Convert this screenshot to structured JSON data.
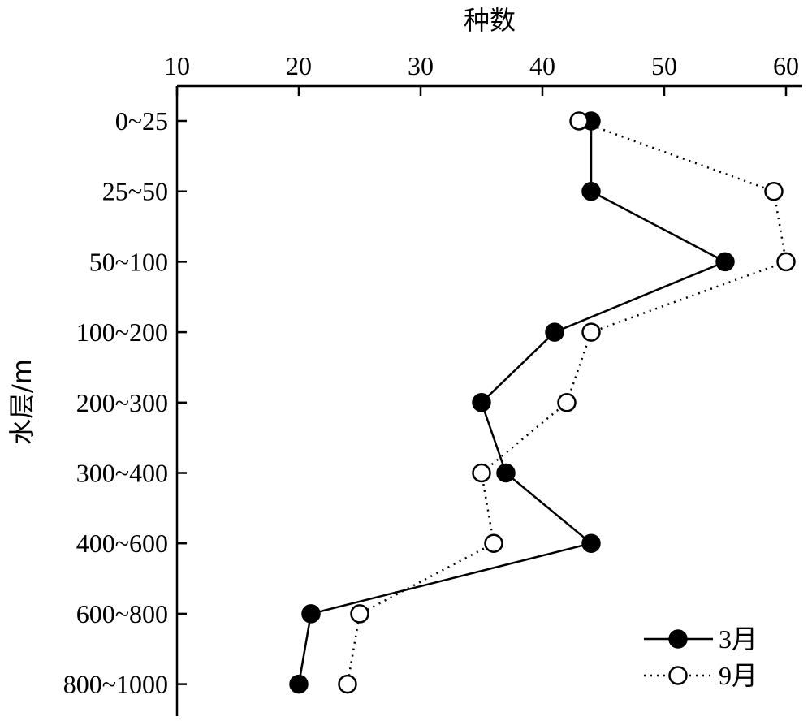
{
  "chart_data": {
    "type": "line",
    "xlabel": "种数",
    "ylabel": "水层/m",
    "xlim": [
      10,
      62
    ],
    "x_ticks": [
      10,
      20,
      30,
      40,
      50,
      60
    ],
    "x_axis_position": "top",
    "categories": [
      "0~25",
      "25~50",
      "50~100",
      "100~200",
      "200~300",
      "300~400",
      "400~600",
      "600~800",
      "800~1000"
    ],
    "legend_position": "bottom-right",
    "grid": false,
    "series": [
      {
        "name": "3月",
        "values": [
          44,
          44,
          55,
          41,
          35,
          37,
          44,
          21,
          20
        ],
        "marker": "filled-circle",
        "line_style": "solid",
        "color": "#000000"
      },
      {
        "name": "9月",
        "values": [
          43,
          59,
          60,
          44,
          42,
          35,
          36,
          25,
          24
        ],
        "marker": "open-circle",
        "line_style": "dotted",
        "color": "#000000"
      }
    ]
  }
}
